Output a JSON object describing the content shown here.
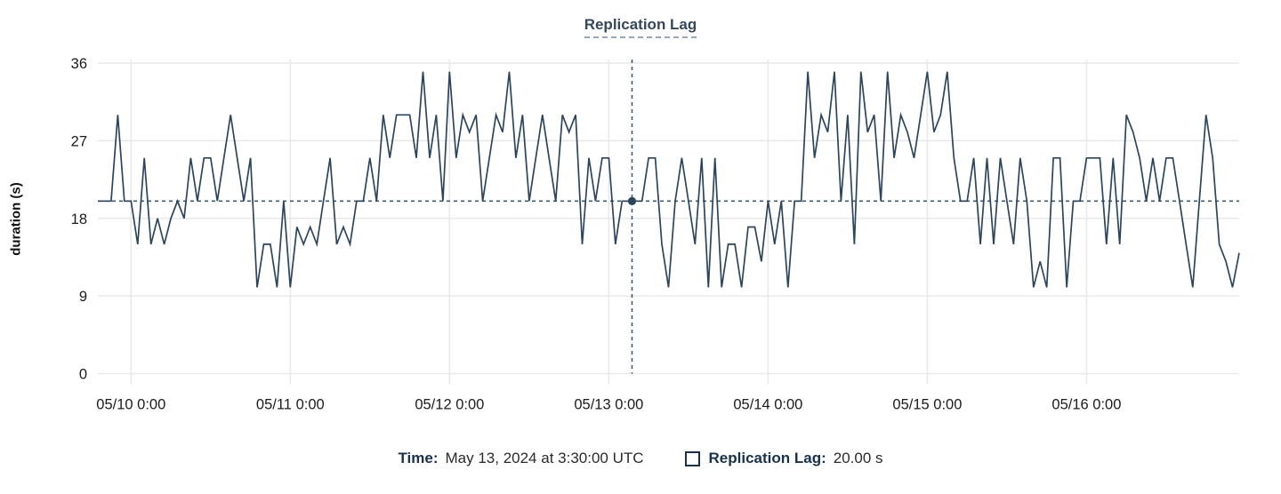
{
  "title": "Replication Lag",
  "footer": {
    "time_label": "Time:",
    "time_value": "May 13, 2024 at 3:30:00 UTC",
    "series_label": "Replication Lag:",
    "series_value": "20.00 s"
  },
  "colors": {
    "line": "#2b4560",
    "crosshair": "#3e5c76",
    "grid": "#e9e9e9",
    "title": "#34475c",
    "tick_text": "#1c1c1c",
    "navy": "#17314f"
  },
  "chart_data": {
    "type": "line",
    "title": "Replication Lag",
    "xlabel": "",
    "ylabel": "duration (s)",
    "ylim": [
      0,
      36
    ],
    "y_ticks": [
      0,
      9,
      18,
      27,
      36
    ],
    "grid": true,
    "legend_position": "bottom",
    "x_start": "2024-05-09 19:00 UTC",
    "interval_minutes": 60,
    "x_tick_labels": [
      "05/10 0:00",
      "05/11 0:00",
      "05/12 0:00",
      "05/13 0:00",
      "05/14 0:00",
      "05/15 0:00",
      "05/16 0:00"
    ],
    "x_tick_indices": [
      5,
      29,
      53,
      77,
      101,
      125,
      149
    ],
    "series": [
      {
        "name": "Replication Lag",
        "unit": "s",
        "values": [
          20,
          20,
          20,
          30,
          20,
          20,
          15,
          25,
          15,
          18,
          15,
          18,
          20,
          18,
          25,
          20,
          25,
          25,
          20,
          25,
          30,
          25,
          20,
          25,
          10,
          15,
          15,
          10,
          20,
          10,
          17,
          15,
          17,
          15,
          20,
          25,
          15,
          17,
          15,
          20,
          20,
          25,
          20,
          30,
          25,
          30,
          30,
          30,
          25,
          35,
          25,
          30,
          20,
          35,
          25,
          30,
          28,
          30,
          20,
          25,
          30,
          28,
          35,
          25,
          30,
          20,
          25,
          30,
          25,
          20,
          30,
          28,
          30,
          15,
          25,
          20,
          25,
          25,
          15,
          20,
          20,
          20,
          20,
          25,
          25,
          15,
          10,
          20,
          25,
          20,
          15,
          25,
          10,
          25,
          10,
          15,
          15,
          10,
          17,
          17,
          13,
          20,
          15,
          20,
          10,
          20,
          20,
          35,
          25,
          30,
          28,
          35,
          20,
          30,
          15,
          35,
          28,
          30,
          20,
          35,
          25,
          30,
          28,
          25,
          30,
          35,
          28,
          30,
          35,
          25,
          20,
          20,
          25,
          15,
          25,
          15,
          25,
          20,
          15,
          25,
          20,
          10,
          13,
          10,
          25,
          25,
          10,
          20,
          20,
          25,
          25,
          25,
          15,
          25,
          15,
          30,
          28,
          25,
          20,
          25,
          20,
          25,
          25,
          20,
          15,
          10,
          20,
          30,
          25,
          15,
          13,
          10,
          14
        ]
      }
    ],
    "crosshair": {
      "index": 80.5,
      "value": 20,
      "time_label": "May 13, 2024 at 3:30:00 UTC",
      "value_label": "20.00 s"
    }
  }
}
